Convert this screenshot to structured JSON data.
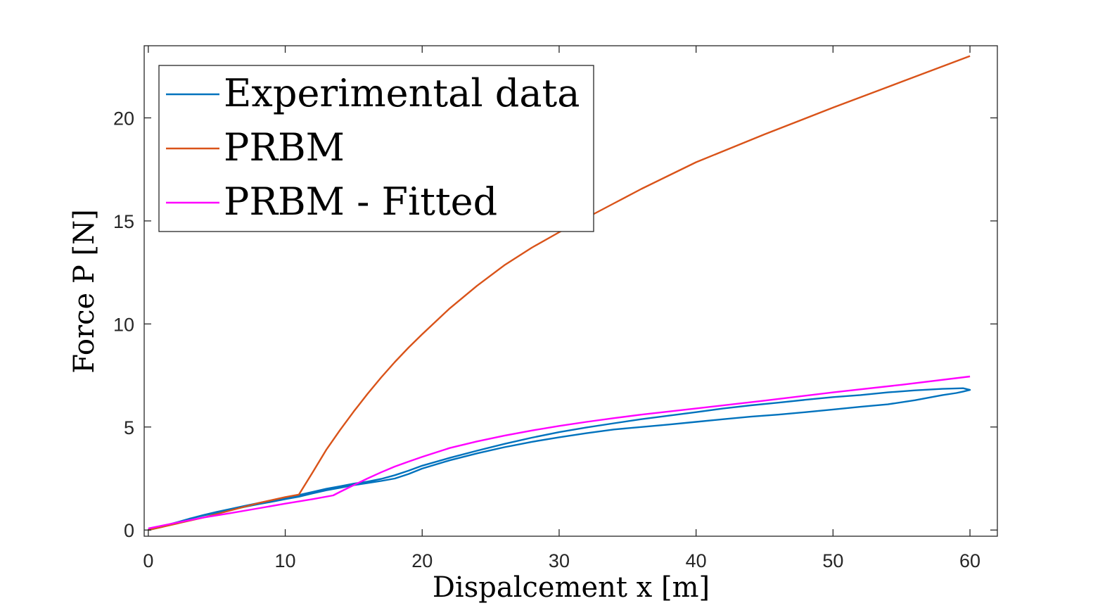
{
  "chart_data": {
    "type": "line",
    "xlabel": "Dispalcement x [m]",
    "ylabel": "Force P [N]",
    "xlim": [
      -0.3,
      62
    ],
    "ylim": [
      -0.3,
      23.5
    ],
    "xticks": [
      0,
      10,
      20,
      30,
      40,
      50,
      60
    ],
    "yticks": [
      0,
      5,
      10,
      15,
      20
    ],
    "xtick_labels": [
      "0",
      "10",
      "20",
      "30",
      "40",
      "50",
      "60"
    ],
    "ytick_labels": [
      "0",
      "5",
      "10",
      "15",
      "20"
    ],
    "grid": false,
    "box": true,
    "legend_position": "top-left",
    "series": [
      {
        "name": "Experimental data",
        "color": "#0072BD",
        "x": [
          0,
          1,
          2,
          3,
          4,
          5,
          6,
          7,
          8,
          9,
          10,
          11,
          12,
          13,
          14,
          15,
          16,
          17,
          18,
          19,
          20,
          22,
          24,
          26,
          28,
          30,
          32,
          34,
          36,
          38,
          40,
          42,
          44,
          46,
          48,
          50,
          52,
          54,
          56,
          58,
          59,
          59.5,
          60,
          59.5,
          58,
          56,
          54,
          52,
          50,
          48,
          46,
          44,
          42,
          40,
          38,
          36,
          34,
          32,
          30,
          28,
          26,
          24,
          22,
          20,
          19,
          18,
          17,
          16,
          15,
          14,
          13,
          12,
          11,
          10,
          9,
          8,
          7,
          6,
          5,
          4,
          3,
          2,
          1,
          0
        ],
        "y": [
          0,
          0.15,
          0.35,
          0.55,
          0.7,
          0.85,
          0.98,
          1.12,
          1.25,
          1.37,
          1.5,
          1.62,
          1.78,
          1.93,
          2.05,
          2.18,
          2.28,
          2.38,
          2.5,
          2.72,
          2.98,
          3.38,
          3.72,
          4.02,
          4.28,
          4.5,
          4.7,
          4.88,
          5.0,
          5.12,
          5.25,
          5.38,
          5.5,
          5.6,
          5.72,
          5.85,
          5.98,
          6.1,
          6.3,
          6.55,
          6.65,
          6.72,
          6.8,
          6.88,
          6.85,
          6.78,
          6.68,
          6.55,
          6.45,
          6.32,
          6.18,
          6.05,
          5.9,
          5.72,
          5.55,
          5.38,
          5.18,
          4.98,
          4.75,
          4.48,
          4.18,
          3.85,
          3.5,
          3.12,
          2.88,
          2.66,
          2.48,
          2.35,
          2.25,
          2.12,
          2.0,
          1.85,
          1.7,
          1.56,
          1.43,
          1.3,
          1.17,
          1.02,
          0.88,
          0.72,
          0.55,
          0.36,
          0.18,
          0.02
        ]
      },
      {
        "name": "PRBM",
        "color": "#D95319",
        "x": [
          0,
          2,
          4,
          6,
          8,
          10,
          11,
          12,
          13,
          14,
          15,
          16,
          17,
          18,
          19,
          20,
          22,
          24,
          26,
          28,
          30,
          32,
          34,
          36,
          38,
          40,
          45,
          50,
          55,
          60
        ],
        "y": [
          0,
          0.3,
          0.6,
          0.95,
          1.3,
          1.6,
          1.72,
          2.8,
          3.9,
          4.85,
          5.75,
          6.6,
          7.4,
          8.15,
          8.85,
          9.5,
          10.75,
          11.85,
          12.85,
          13.7,
          14.45,
          15.15,
          15.85,
          16.55,
          17.2,
          17.85,
          19.2,
          20.5,
          21.75,
          23.0
        ]
      },
      {
        "name": "PRBM - Fitted",
        "color": "#FF00FF",
        "x": [
          0,
          2,
          4,
          6,
          8,
          10,
          12,
          13.5,
          14,
          15,
          16,
          17,
          18,
          19,
          20,
          22,
          24,
          26,
          28,
          30,
          32,
          34,
          36,
          38,
          40,
          45,
          50,
          55,
          60
        ],
        "y": [
          0.08,
          0.35,
          0.6,
          0.82,
          1.05,
          1.28,
          1.5,
          1.68,
          1.85,
          2.18,
          2.5,
          2.8,
          3.08,
          3.32,
          3.55,
          3.98,
          4.3,
          4.58,
          4.83,
          5.05,
          5.25,
          5.43,
          5.6,
          5.75,
          5.9,
          6.28,
          6.68,
          7.05,
          7.45
        ]
      }
    ]
  }
}
